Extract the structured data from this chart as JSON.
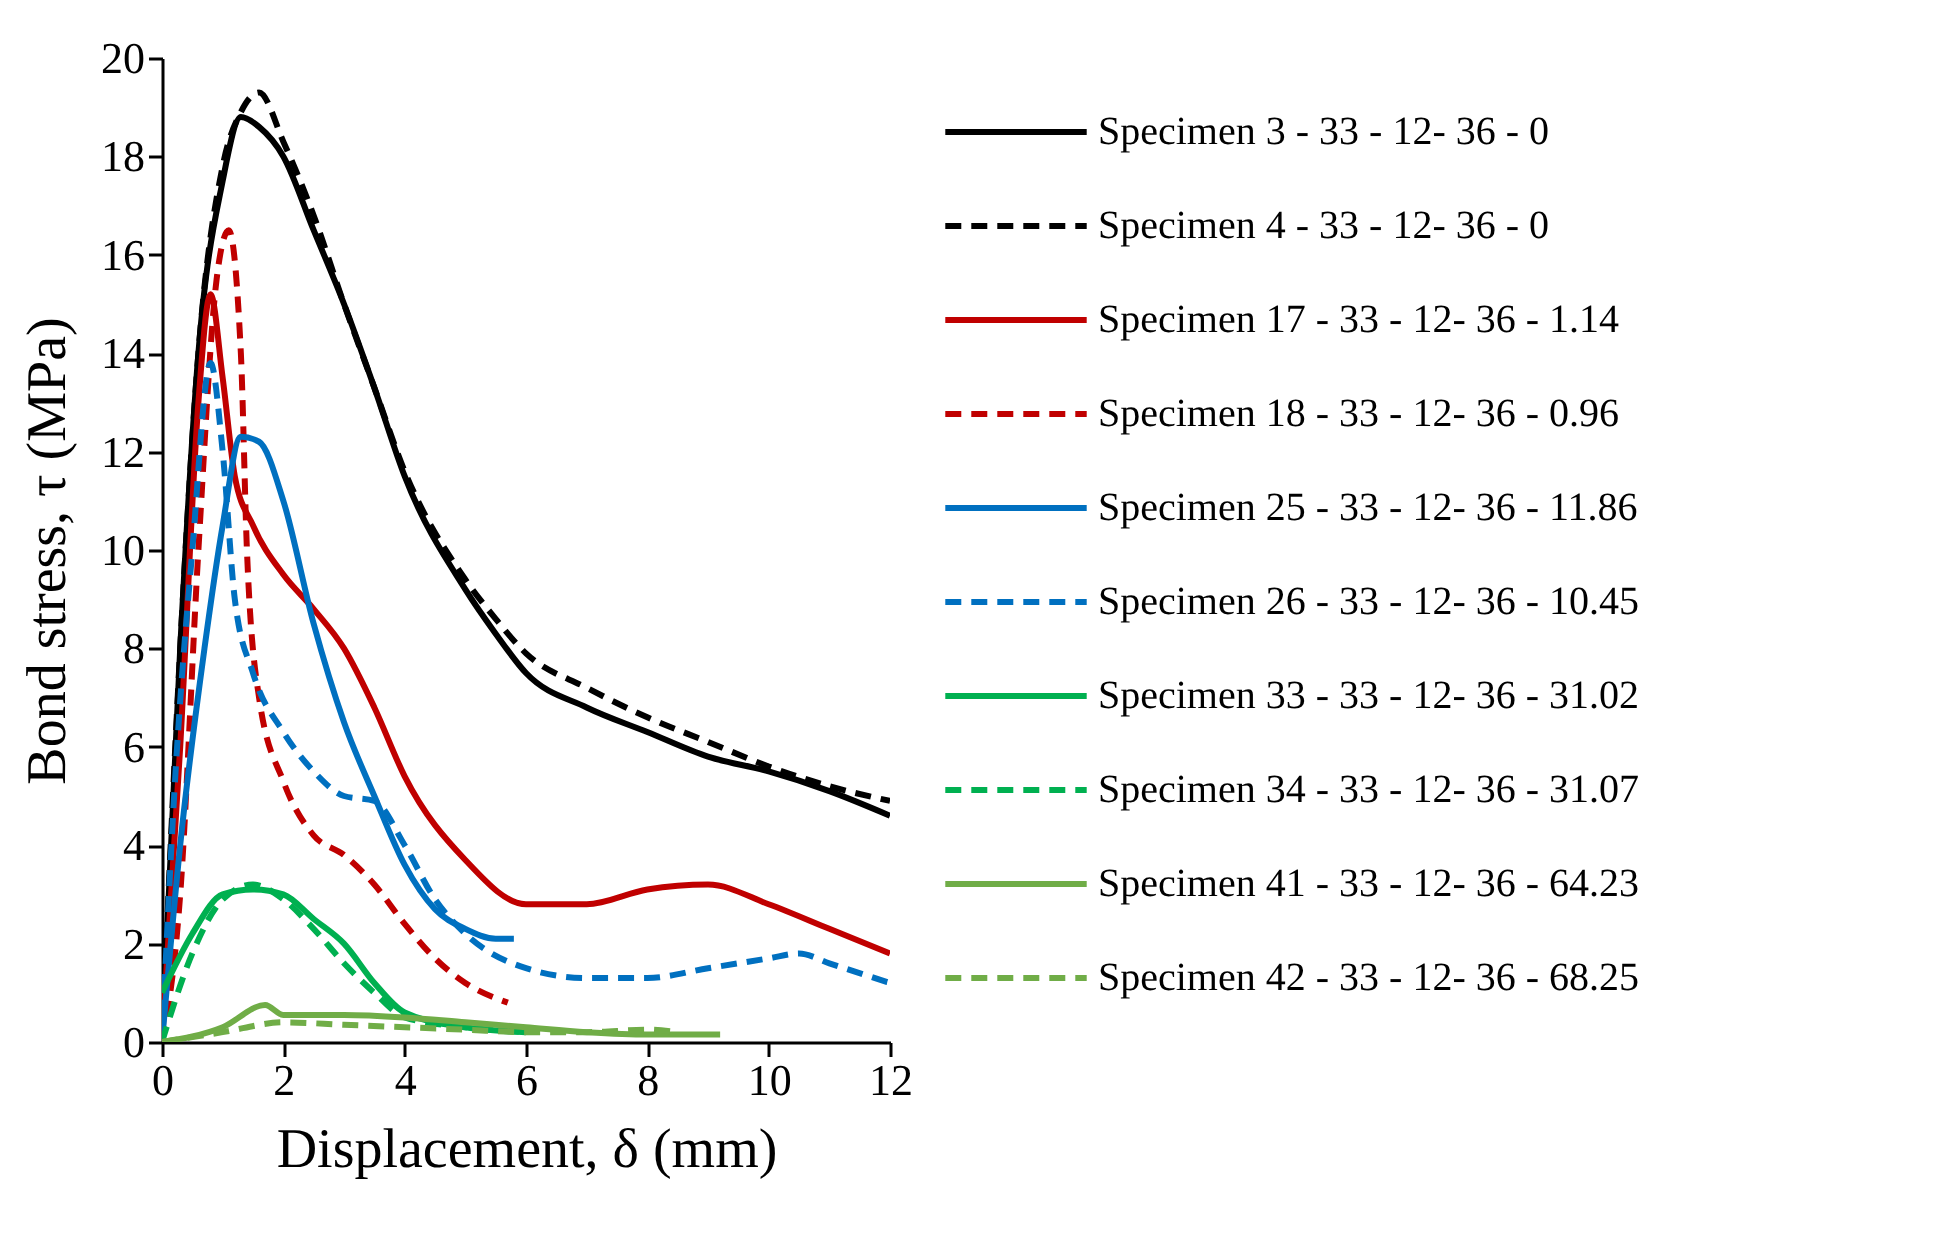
{
  "chart_data": {
    "type": "line",
    "xlabel": "Displacement, δ (mm)",
    "ylabel": "Bond stress, τ (MPa)",
    "xlim": [
      0,
      12
    ],
    "xticks": [
      0,
      2,
      4,
      6,
      8,
      10,
      12
    ],
    "ylim": [
      0,
      20
    ],
    "yticks": [
      0,
      2,
      4,
      6,
      8,
      10,
      12,
      14,
      16,
      18,
      20
    ],
    "grid": false,
    "legend": "right",
    "marker": "none",
    "series": [
      {
        "name": "Specimen 3 - 33 - 12- 36 - 0",
        "color": "#000000",
        "line_style": "solid",
        "x": [
          0,
          0.3,
          0.6,
          1,
          1.3,
          1.6,
          2,
          2.5,
          3,
          3.5,
          4,
          5,
          5.5,
          6,
          7,
          8,
          9,
          10,
          11,
          12
        ],
        "values": [
          0,
          8,
          14,
          17.5,
          18.8,
          18.6,
          18,
          16.5,
          15,
          13.3,
          11.5,
          9.2,
          8.3,
          7.5,
          6.8,
          6.3,
          5.8,
          5.5,
          5.1,
          4.6
        ]
      },
      {
        "name": "Specimen 4 - 33 - 12- 36 - 0",
        "color": "#000000",
        "line_style": "dashed",
        "x": [
          0,
          0.3,
          0.6,
          1,
          1.3,
          1.6,
          2,
          2.5,
          3,
          3.5,
          4,
          5,
          5.5,
          6,
          7,
          8,
          9,
          10,
          11,
          12
        ],
        "values": [
          0,
          8,
          14,
          17.8,
          18.9,
          19.3,
          18.3,
          16.8,
          15,
          13.3,
          11.6,
          9.4,
          8.6,
          7.9,
          7.2,
          6.6,
          6.1,
          5.6,
          5.2,
          4.9
        ]
      },
      {
        "name": "Specimen 17 - 33 - 12- 36 - 1.14",
        "color": "#c00000",
        "line_style": "solid",
        "x": [
          0,
          0.3,
          0.6,
          0.8,
          1,
          1.2,
          1.5,
          2,
          2.5,
          3,
          3.5,
          4,
          5,
          6,
          7,
          8,
          9,
          10,
          11,
          12
        ],
        "values": [
          0,
          6,
          13,
          15.2,
          13.5,
          11.5,
          10.5,
          9.5,
          8.8,
          8,
          6.8,
          5.4,
          3.7,
          2.8,
          2.8,
          3.1,
          3.2,
          2.8,
          2.3,
          1.8
        ]
      },
      {
        "name": "Specimen 18 - 33 - 12- 36 - 0.96",
        "color": "#c00000",
        "line_style": "dashed",
        "x": [
          0,
          0.3,
          0.6,
          0.9,
          1.1,
          1.3,
          1.4,
          1.6,
          2,
          2.5,
          3,
          3.5,
          4,
          4.5,
          5,
          5.7
        ],
        "values": [
          0,
          3,
          10,
          15.5,
          16.5,
          14,
          10,
          7,
          5.3,
          4.2,
          3.8,
          3.2,
          2.4,
          1.7,
          1.2,
          0.8
        ]
      },
      {
        "name": "Specimen 25 - 33 - 12- 36 - 11.86",
        "color": "#0070c0",
        "line_style": "solid",
        "x": [
          0,
          0.3,
          0.7,
          1,
          1.3,
          1.6,
          2,
          2.5,
          3,
          3.5,
          4,
          4.5,
          5,
          5.5,
          5.8
        ],
        "values": [
          0,
          4,
          8,
          10.5,
          12.3,
          12.2,
          11,
          8.5,
          6.5,
          5,
          3.6,
          2.7,
          2.3,
          2.1,
          2.1
        ]
      },
      {
        "name": "Specimen 26 - 33 - 12- 36 - 10.45",
        "color": "#0070c0",
        "line_style": "dashed",
        "x": [
          0,
          0.2,
          0.5,
          0.8,
          1,
          1.2,
          1.5,
          2,
          2.5,
          3,
          3.5,
          4,
          4.5,
          5,
          6,
          7,
          8,
          9,
          10,
          10.5,
          11,
          12
        ],
        "values": [
          0,
          5,
          10,
          13.8,
          12,
          9,
          7.5,
          6.3,
          5.5,
          5,
          4.9,
          4,
          2.9,
          2.2,
          1.5,
          1.3,
          1.3,
          1.5,
          1.7,
          1.8,
          1.6,
          1.2
        ]
      },
      {
        "name": "Specimen 33 - 33 - 12- 36 - 31.02",
        "color": "#00b050",
        "line_style": "solid",
        "x": [
          0,
          0.5,
          1,
          1.5,
          2,
          2.5,
          3,
          3.5,
          4,
          5,
          6
        ],
        "values": [
          1,
          2.2,
          3,
          3.1,
          3,
          2.5,
          2,
          1.2,
          0.6,
          0.3,
          0.2
        ]
      },
      {
        "name": "Specimen 34 - 33 - 12- 36 - 31.07",
        "color": "#00b050",
        "line_style": "dashed",
        "x": [
          0,
          0.5,
          1,
          1.5,
          2,
          2.5,
          3,
          3.5,
          4,
          5,
          6
        ],
        "values": [
          0,
          1.8,
          2.9,
          3.2,
          2.9,
          2.3,
          1.6,
          1,
          0.5,
          0.3,
          0.2
        ]
      },
      {
        "name": "Specimen 41 - 33 - 12- 36 - 64.23",
        "color": "#70ad47",
        "line_style": "solid",
        "x": [
          0,
          1,
          1.7,
          2,
          3,
          4,
          5,
          6,
          7,
          8,
          9.2
        ],
        "values": [
          0,
          0.3,
          0.75,
          0.55,
          0.55,
          0.5,
          0.4,
          0.3,
          0.2,
          0.15,
          0.15
        ]
      },
      {
        "name": "Specimen 42 - 33 - 12- 36 - 68.25",
        "color": "#70ad47",
        "line_style": "dashed",
        "x": [
          0,
          1,
          2,
          3,
          4,
          5,
          6,
          7,
          8,
          8.5
        ],
        "values": [
          0,
          0.2,
          0.4,
          0.35,
          0.3,
          0.25,
          0.2,
          0.2,
          0.25,
          0.2
        ]
      }
    ]
  }
}
